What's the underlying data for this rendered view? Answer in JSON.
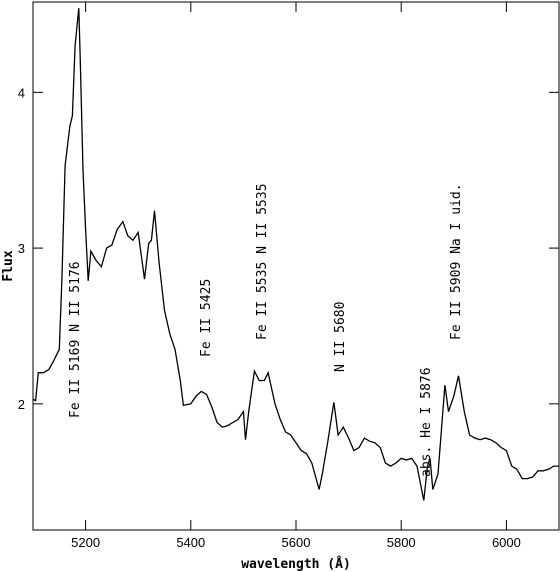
{
  "chart_data": {
    "type": "line",
    "x_label": "wavelength (Å)",
    "y_label": "Flux",
    "xlim": [
      5100,
      6100
    ],
    "ylim": [
      1.19,
      4.58
    ],
    "xticks": [
      5200,
      5400,
      5600,
      5800,
      6000
    ],
    "yticks": [
      2,
      3,
      4
    ],
    "annotations": [
      "Fe II 5169 N II 5176",
      "Fe II 5425",
      "Fe II 5535 N II 5535",
      "N II 5680",
      "abs. He I 5876",
      "Fe II 5909 Na I uid."
    ],
    "series": [
      {
        "color": "#000000",
        "x": [
          5100,
          5105,
          5110,
          5120,
          5130,
          5140,
          5150,
          5155,
          5161,
          5170,
          5175,
          5180,
          5187,
          5190,
          5195,
          5200,
          5205,
          5210,
          5220,
          5230,
          5240,
          5250,
          5260,
          5271,
          5280,
          5290,
          5300,
          5312,
          5320,
          5325,
          5331,
          5340,
          5350,
          5360,
          5370,
          5380,
          5386,
          5400,
          5410,
          5420,
          5430,
          5440,
          5450,
          5460,
          5470,
          5480,
          5490,
          5500,
          5504,
          5510,
          5521,
          5530,
          5540,
          5547,
          5560,
          5570,
          5580,
          5590,
          5600,
          5610,
          5620,
          5630,
          5644,
          5650,
          5660,
          5667,
          5672,
          5680,
          5690,
          5700,
          5710,
          5720,
          5730,
          5740,
          5750,
          5760,
          5770,
          5780,
          5790,
          5800,
          5810,
          5820,
          5830,
          5843,
          5850,
          5855,
          5860,
          5870,
          5883,
          5890,
          5900,
          5909,
          5920,
          5930,
          5940,
          5950,
          5960,
          5970,
          5980,
          5990,
          6000,
          6010,
          6020,
          6030,
          6040,
          6050,
          6060,
          6070,
          6080,
          6090,
          6100
        ],
        "values": [
          2.03,
          2.02,
          2.2,
          2.2,
          2.22,
          2.28,
          2.35,
          2.8,
          3.53,
          3.78,
          3.85,
          4.3,
          4.54,
          4.2,
          3.5,
          3.12,
          2.79,
          2.98,
          2.92,
          2.88,
          3.0,
          3.02,
          3.12,
          3.17,
          3.08,
          3.05,
          3.1,
          2.8,
          3.03,
          3.05,
          3.24,
          2.9,
          2.6,
          2.45,
          2.35,
          2.15,
          1.99,
          2.0,
          2.05,
          2.08,
          2.06,
          1.98,
          1.88,
          1.85,
          1.86,
          1.88,
          1.9,
          1.95,
          1.77,
          1.95,
          2.21,
          2.15,
          2.15,
          2.2,
          2.0,
          1.9,
          1.82,
          1.8,
          1.75,
          1.7,
          1.68,
          1.62,
          1.45,
          1.55,
          1.75,
          1.9,
          2.01,
          1.8,
          1.85,
          1.78,
          1.7,
          1.72,
          1.78,
          1.76,
          1.75,
          1.72,
          1.62,
          1.6,
          1.62,
          1.65,
          1.64,
          1.65,
          1.6,
          1.38,
          1.6,
          1.65,
          1.45,
          1.55,
          2.12,
          1.95,
          2.05,
          2.18,
          1.95,
          1.8,
          1.78,
          1.77,
          1.78,
          1.77,
          1.75,
          1.72,
          1.7,
          1.6,
          1.58,
          1.52,
          1.52,
          1.53,
          1.57,
          1.57,
          1.58,
          1.6,
          1.6
        ]
      }
    ]
  }
}
